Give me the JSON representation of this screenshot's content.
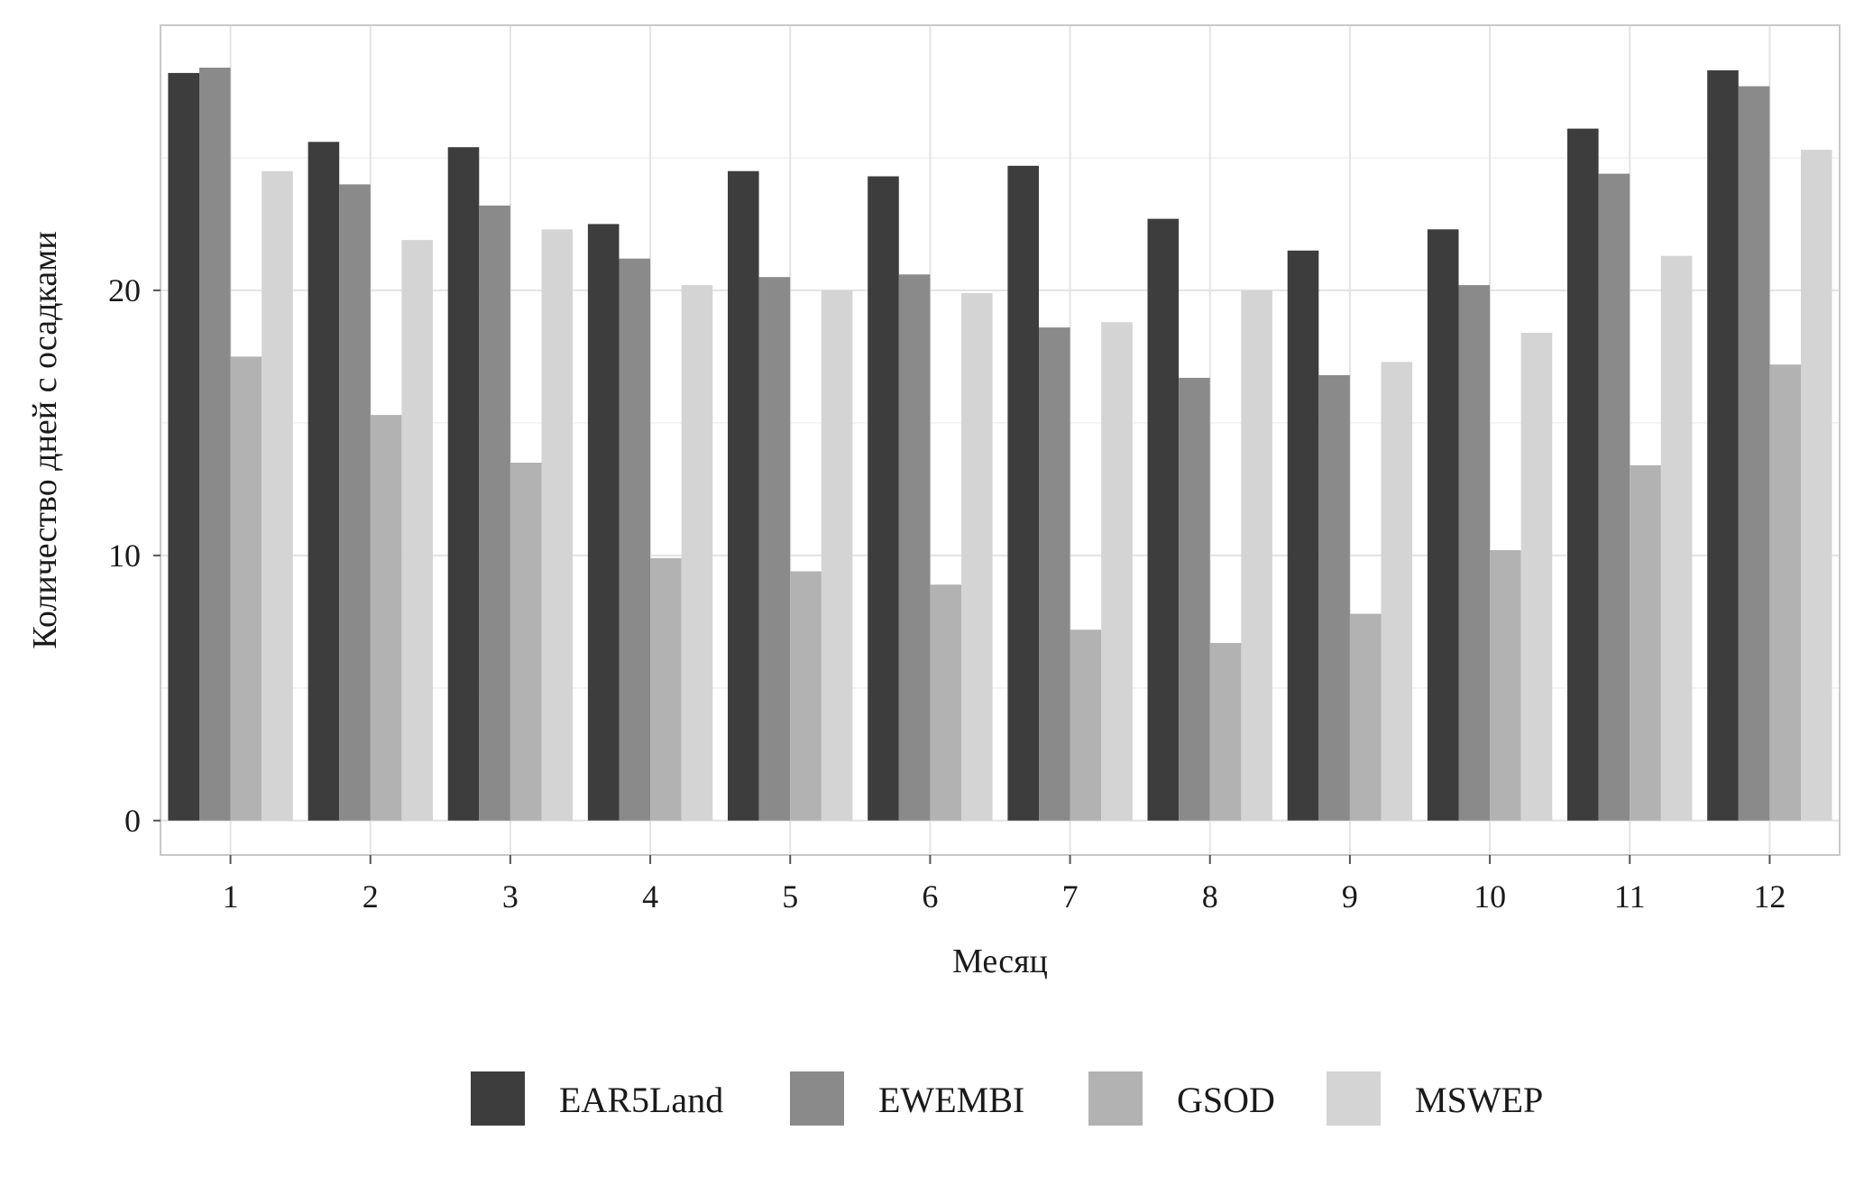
{
  "chart_data": {
    "type": "bar",
    "title": "",
    "xlabel": "Месяц",
    "ylabel": "Количество дней с осадками",
    "categories": [
      "1",
      "2",
      "3",
      "4",
      "5",
      "6",
      "7",
      "8",
      "9",
      "10",
      "11",
      "12"
    ],
    "yticks": [
      "0",
      "10",
      "20"
    ],
    "ylim": [
      -1.3,
      30
    ],
    "grid": true,
    "legend_position": "bottom",
    "series": [
      {
        "name": "EAR5Land",
        "color": "#3d3d3d",
        "values": [
          28.2,
          25.6,
          25.4,
          22.5,
          24.5,
          24.3,
          24.7,
          22.7,
          21.5,
          22.3,
          26.1,
          28.3
        ]
      },
      {
        "name": "EWEMBI",
        "color": "#8a8a8a",
        "values": [
          28.4,
          24.0,
          23.2,
          21.2,
          20.5,
          20.6,
          18.6,
          16.7,
          16.8,
          20.2,
          24.4,
          27.7
        ]
      },
      {
        "name": "GSOD",
        "color": "#b2b2b2",
        "values": [
          17.5,
          15.3,
          13.5,
          9.9,
          9.4,
          8.9,
          7.2,
          6.7,
          7.8,
          10.2,
          13.4,
          17.2
        ]
      },
      {
        "name": "MSWEP",
        "color": "#d4d4d4",
        "values": [
          24.5,
          21.9,
          22.3,
          20.2,
          20.0,
          19.9,
          18.8,
          20.0,
          17.3,
          18.4,
          21.3,
          25.3
        ]
      }
    ]
  }
}
